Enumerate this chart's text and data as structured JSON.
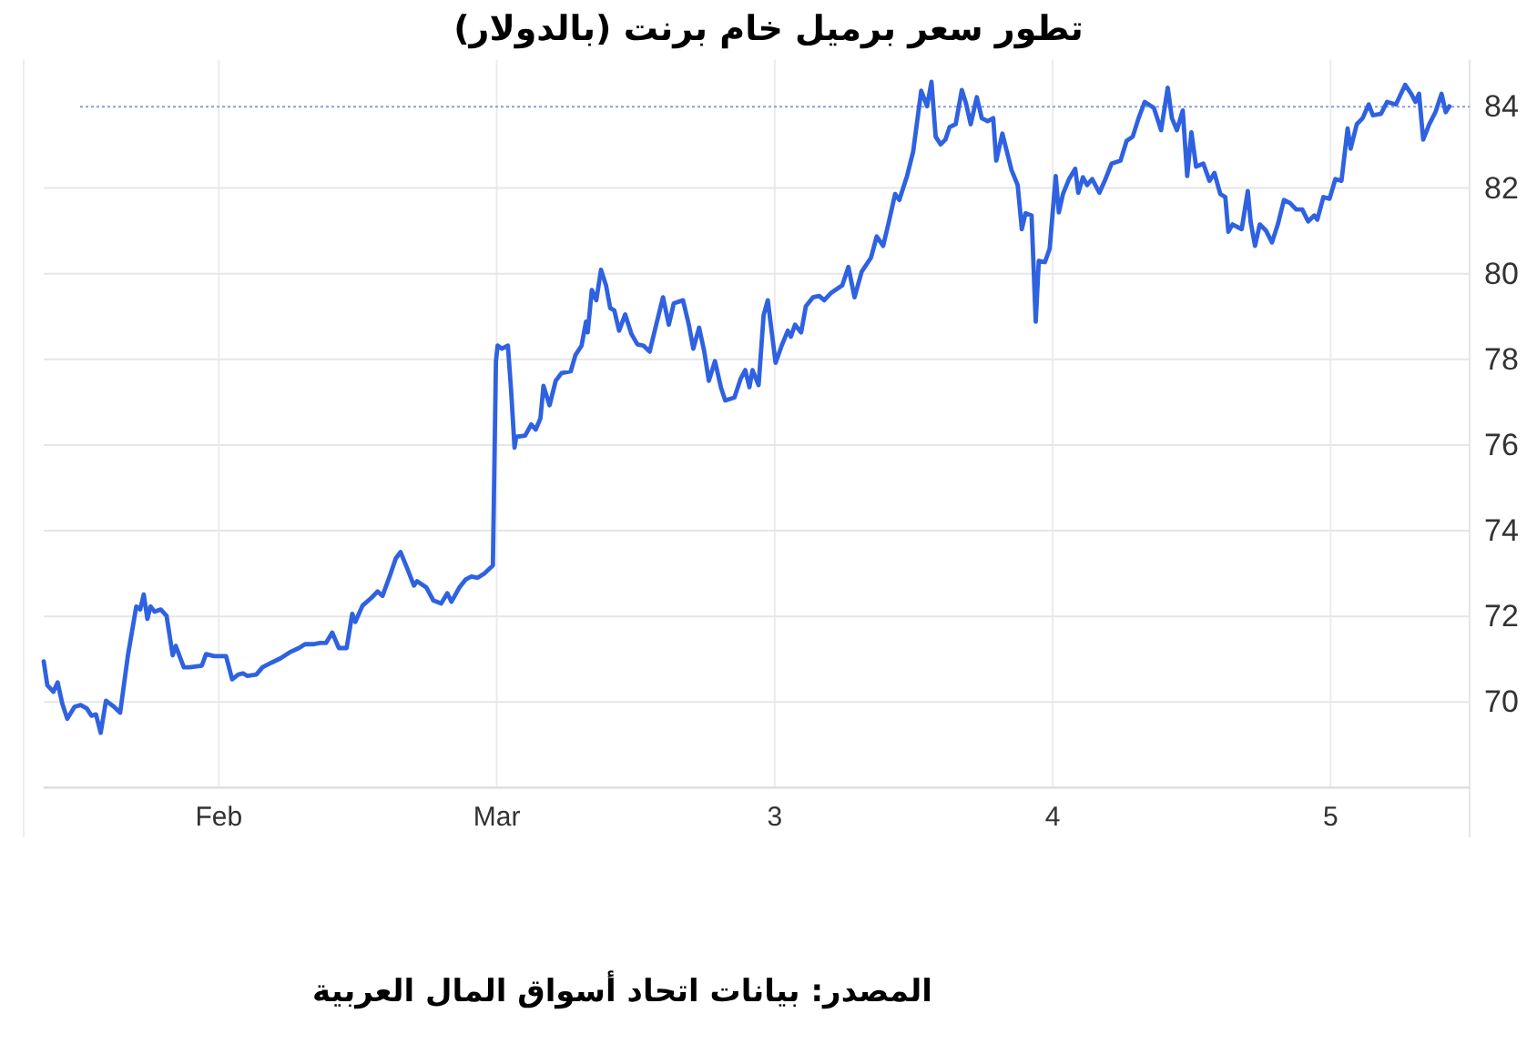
{
  "chart_data": {
    "type": "line",
    "title": "تطور سعر برميل خام برنت (بالدولار)",
    "annotations": [
      "المصدر: بيانات اتحاد أسواق المال العربية"
    ],
    "x": [
      0.37,
      0.383,
      0.405,
      0.42,
      0.437,
      0.455,
      0.481,
      0.503,
      0.525,
      0.542,
      0.558,
      0.575,
      0.594,
      0.623,
      0.645,
      0.673,
      0.703,
      0.717,
      0.73,
      0.743,
      0.754,
      0.769,
      0.791,
      0.812,
      0.834,
      0.845,
      0.874,
      0.895,
      0.939,
      0.954,
      0.983,
      1.026,
      1.048,
      1.07,
      1.087,
      1.102,
      1.135,
      1.157,
      1.19,
      1.222,
      1.255,
      1.288,
      1.31,
      1.342,
      1.364,
      1.386,
      1.408,
      1.432,
      1.46,
      1.48,
      1.491,
      1.517,
      1.55,
      1.571,
      1.589,
      1.615,
      1.637,
      1.654,
      1.676,
      1.702,
      1.713,
      1.746,
      1.772,
      1.8,
      1.822,
      1.837,
      1.866,
      1.888,
      1.909,
      1.931,
      1.957,
      1.986,
      1.997,
      2.003,
      2.018,
      2.04,
      2.051,
      2.064,
      2.07,
      2.102,
      2.124,
      2.14,
      2.157,
      2.168,
      2.19,
      2.212,
      2.233,
      2.266,
      2.283,
      2.305,
      2.321,
      2.327,
      2.342,
      2.358,
      2.375,
      2.393,
      2.408,
      2.423,
      2.44,
      2.462,
      2.484,
      2.506,
      2.528,
      2.55,
      2.571,
      2.598,
      2.619,
      2.637,
      2.67,
      2.691,
      2.707,
      2.728,
      2.746,
      2.763,
      2.785,
      2.807,
      2.822,
      2.855,
      2.877,
      2.894,
      2.909,
      2.92,
      2.942,
      2.96,
      2.975,
      2.99,
      3.003,
      3.025,
      3.047,
      3.058,
      3.073,
      3.095,
      3.112,
      3.138,
      3.16,
      3.178,
      3.204,
      3.243,
      3.265,
      3.287,
      3.313,
      3.346,
      3.367,
      3.39,
      3.411,
      3.433,
      3.448,
      3.476,
      3.498,
      3.527,
      3.548,
      3.564,
      3.579,
      3.597,
      3.614,
      3.629,
      3.651,
      3.673,
      3.688,
      3.705,
      3.727,
      3.745,
      3.766,
      3.786,
      3.797,
      3.819,
      3.852,
      3.874,
      3.889,
      3.902,
      3.924,
      3.939,
      3.95,
      3.972,
      3.989,
      4.011,
      4.022,
      4.037,
      4.059,
      4.081,
      4.092,
      4.109,
      4.124,
      4.142,
      4.168,
      4.19,
      4.212,
      4.244,
      4.266,
      4.288,
      4.309,
      4.331,
      4.364,
      4.39,
      4.414,
      4.429,
      4.447,
      4.468,
      4.484,
      4.499,
      4.516,
      4.542,
      4.564,
      4.582,
      4.603,
      4.621,
      4.632,
      4.647,
      4.68,
      4.702,
      4.712,
      4.728,
      4.745,
      4.767,
      4.789,
      4.81,
      4.832,
      4.854,
      4.876,
      4.898,
      4.919,
      4.941,
      4.952,
      4.974,
      4.996,
      5.017,
      5.039,
      5.061,
      5.072,
      5.094,
      5.115,
      5.137,
      5.152,
      5.181,
      5.203,
      5.235,
      5.268,
      5.29,
      5.305,
      5.318,
      5.333,
      5.355,
      5.377,
      5.399,
      5.414,
      5.427
    ],
    "values": [
      70.95,
      70.39,
      70.24,
      70.46,
      69.96,
      69.61,
      69.89,
      69.93,
      69.85,
      69.68,
      69.71,
      69.28,
      70.03,
      69.89,
      69.75,
      71.09,
      72.23,
      72.16,
      72.51,
      71.94,
      72.23,
      72.11,
      72.16,
      72.01,
      71.09,
      71.31,
      70.81,
      70.81,
      70.85,
      71.12,
      71.07,
      71.07,
      70.53,
      70.64,
      70.67,
      70.61,
      70.64,
      70.81,
      70.92,
      71.02,
      71.16,
      71.26,
      71.35,
      71.35,
      71.38,
      71.38,
      71.62,
      71.26,
      71.26,
      72.06,
      71.87,
      72.25,
      72.44,
      72.58,
      72.48,
      72.94,
      73.36,
      73.5,
      73.15,
      72.72,
      72.82,
      72.68,
      72.37,
      72.3,
      72.54,
      72.34,
      72.68,
      72.86,
      72.93,
      72.9,
      73.01,
      73.19,
      77.96,
      78.32,
      78.25,
      78.32,
      77.33,
      75.94,
      76.19,
      76.22,
      76.48,
      76.36,
      76.62,
      77.38,
      76.93,
      77.5,
      77.68,
      77.72,
      78.1,
      78.32,
      78.88,
      78.63,
      79.62,
      79.38,
      80.09,
      79.73,
      79.2,
      79.14,
      78.67,
      79.05,
      78.6,
      78.35,
      78.32,
      78.18,
      78.74,
      79.45,
      78.81,
      79.31,
      79.38,
      78.81,
      78.25,
      78.74,
      78.2,
      77.5,
      77.96,
      77.33,
      77.04,
      77.11,
      77.54,
      77.75,
      77.35,
      77.75,
      77.4,
      79.03,
      79.38,
      78.6,
      77.92,
      78.32,
      78.67,
      78.53,
      78.81,
      78.63,
      79.24,
      79.45,
      79.48,
      79.38,
      79.56,
      79.73,
      80.16,
      79.45,
      80.05,
      80.37,
      80.87,
      80.65,
      81.22,
      81.86,
      81.72,
      82.28,
      82.85,
      84.27,
      83.91,
      84.48,
      83.2,
      83.02,
      83.13,
      83.42,
      83.49,
      84.29,
      83.98,
      83.49,
      84.12,
      83.63,
      83.56,
      83.63,
      82.64,
      83.27,
      82.42,
      82.07,
      81.04,
      81.41,
      81.36,
      78.88,
      80.3,
      80.27,
      80.58,
      82.28,
      81.43,
      81.86,
      82.21,
      82.45,
      81.89,
      82.25,
      82.07,
      82.21,
      81.89,
      82.21,
      82.57,
      82.64,
      83.1,
      83.2,
      83.63,
      84.01,
      83.87,
      83.35,
      84.34,
      83.63,
      83.35,
      83.81,
      82.28,
      83.3,
      82.5,
      82.57,
      82.17,
      82.35,
      81.86,
      81.79,
      80.98,
      81.15,
      81.04,
      81.93,
      81.22,
      80.65,
      81.15,
      81.01,
      80.73,
      81.15,
      81.72,
      81.65,
      81.5,
      81.5,
      81.22,
      81.36,
      81.26,
      81.79,
      81.75,
      82.21,
      82.17,
      83.39,
      82.92,
      83.49,
      83.63,
      83.95,
      83.7,
      83.73,
      84.01,
      83.95,
      84.41,
      84.2,
      84.01,
      84.2,
      83.13,
      83.49,
      83.77,
      84.2,
      83.77,
      83.91
    ],
    "color": "#2f62e0",
    "xlim": [
      0.37,
      5.5
    ],
    "xticks": [
      {
        "value": 1,
        "label": "Feb"
      },
      {
        "value": 2,
        "label": "Mar"
      },
      3,
      4,
      5
    ],
    "ylim": [
      68,
      85
    ],
    "yticks": [
      70,
      72,
      74,
      76,
      78,
      80,
      82
    ],
    "grid": true,
    "ref_lines": [
      {
        "axis": "y",
        "value": 83.9,
        "label": "84",
        "color": "#8c9be8",
        "line_style": "dotted"
      }
    ]
  }
}
